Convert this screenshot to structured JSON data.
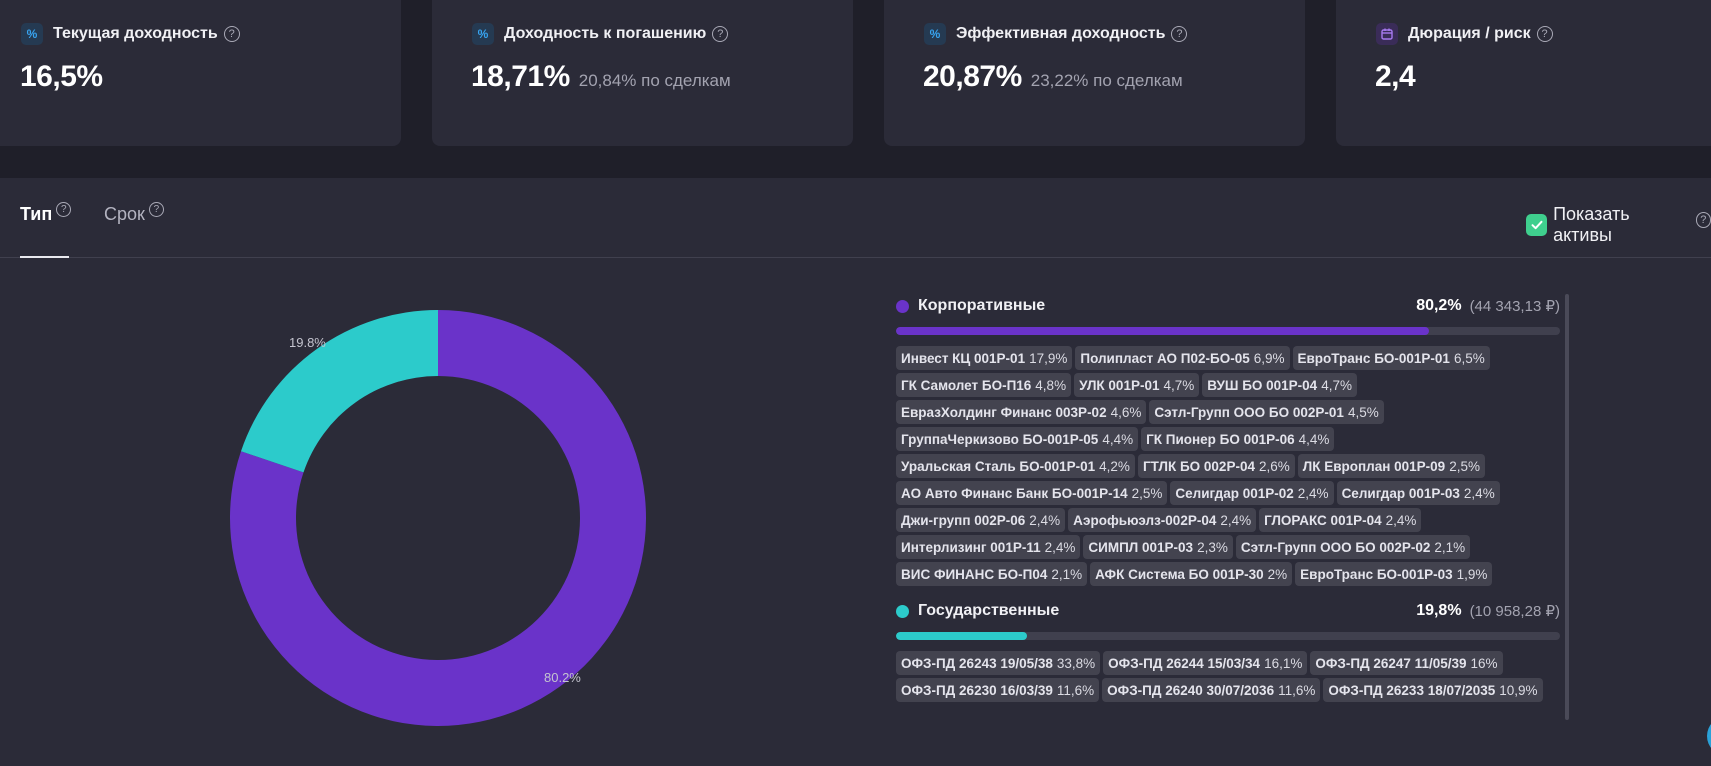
{
  "cards": [
    {
      "icon": "percent-icon",
      "title": "Текущая доходность",
      "value": "16,5%",
      "sub": ""
    },
    {
      "icon": "percent-icon",
      "title": "Доходность к погашению",
      "value": "18,71%",
      "sub": "20,84% по сделкам"
    },
    {
      "icon": "percent-icon",
      "title": "Эффективная доходность",
      "value": "20,87%",
      "sub": "23,22% по сделкам"
    },
    {
      "icon": "calendar-icon",
      "title": "Дюрация / риск",
      "value": "2,4",
      "sub": ""
    }
  ],
  "tabs": {
    "type_label": "Тип",
    "term_label": "Срок",
    "active": "type"
  },
  "show_assets": {
    "label": "Показать активы",
    "checked": true
  },
  "colors": {
    "corporate": "#6a33c9",
    "government": "#2ccbcb"
  },
  "chart_data": {
    "type": "pie",
    "donut": true,
    "categories": [
      "Корпоративные",
      "Государственные"
    ],
    "values": [
      80.2,
      19.8
    ],
    "labels": [
      "80.2%",
      "19.8%"
    ]
  },
  "groups": [
    {
      "name": "Корпоративные",
      "pct": "80,2%",
      "amount": "(44 343,13 ₽)",
      "share": 0.802,
      "color": "#6a33c9",
      "items": [
        {
          "name": "Инвест КЦ 001Р-01",
          "share": "17,9%"
        },
        {
          "name": "Полипласт АО П02-БО-05",
          "share": "6,9%"
        },
        {
          "name": "ЕвроТранс БО-001Р-01",
          "share": "6,5%"
        },
        {
          "name": "ГК Самолет БО-П16",
          "share": "4,8%"
        },
        {
          "name": "УЛК 001Р-01",
          "share": "4,7%"
        },
        {
          "name": "ВУШ БО 001Р-04",
          "share": "4,7%"
        },
        {
          "name": "ЕвразХолдинг Финанс 003Р-02",
          "share": "4,6%"
        },
        {
          "name": "Сэтл-Групп ООО БО 002Р-01",
          "share": "4,5%"
        },
        {
          "name": "ГруппаЧеркизово БО-001Р-05",
          "share": "4,4%"
        },
        {
          "name": "ГК Пионер БО 001Р-06",
          "share": "4,4%"
        },
        {
          "name": "Уральская Сталь БО-001Р-01",
          "share": "4,2%"
        },
        {
          "name": "ГТЛК БО 002Р-04",
          "share": "2,6%"
        },
        {
          "name": "ЛК Европлан 001Р-09",
          "share": "2,5%"
        },
        {
          "name": "АО Авто Финанс Банк БО-001Р-14",
          "share": "2,5%"
        },
        {
          "name": "Селигдар 001Р-02",
          "share": "2,4%"
        },
        {
          "name": "Селигдар 001Р-03",
          "share": "2,4%"
        },
        {
          "name": "Джи-групп 002Р-06",
          "share": "2,4%"
        },
        {
          "name": "Аэрофьюэлз-002Р-04",
          "share": "2,4%"
        },
        {
          "name": "ГЛОРАКС 001Р-04",
          "share": "2,4%"
        },
        {
          "name": "Интерлизинг 001Р-11",
          "share": "2,4%"
        },
        {
          "name": "СИМПЛ 001Р-03",
          "share": "2,3%"
        },
        {
          "name": "Сэтл-Групп ООО БО 002Р-02",
          "share": "2,1%"
        },
        {
          "name": "ВИС ФИНАНС БО-П04",
          "share": "2,1%"
        },
        {
          "name": "АФК Система БО 001Р-30",
          "share": "2%"
        },
        {
          "name": "ЕвроТранс БО-001Р-03",
          "share": "1,9%"
        }
      ]
    },
    {
      "name": "Государственные",
      "pct": "19,8%",
      "amount": "(10 958,28 ₽)",
      "share": 0.198,
      "color": "#2ccbcb",
      "items": [
        {
          "name": "ОФЗ-ПД 26243 19/05/38",
          "share": "33,8%"
        },
        {
          "name": "ОФЗ-ПД 26244 15/03/34",
          "share": "16,1%"
        },
        {
          "name": "ОФЗ-ПД 26247 11/05/39",
          "share": "16%"
        },
        {
          "name": "ОФЗ-ПД 26230 16/03/39",
          "share": "11,6%"
        },
        {
          "name": "ОФЗ-ПД 26240 30/07/2036",
          "share": "11,6%"
        },
        {
          "name": "ОФЗ-ПД 26233 18/07/2035",
          "share": "10,9%"
        }
      ]
    }
  ]
}
